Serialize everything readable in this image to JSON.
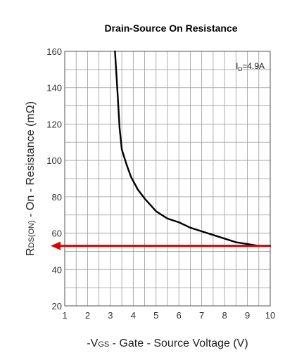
{
  "chart_data": {
    "type": "line",
    "title": "Drain-Source On Resistance",
    "xlabel": "-VGS - Gate - Source Voltage (V)",
    "ylabel": "RDS(ON) - On - Resistance (mΩ)",
    "xlim": [
      1,
      10
    ],
    "ylim": [
      20,
      160
    ],
    "xticks": [
      1,
      2,
      3,
      4,
      5,
      6,
      7,
      8,
      9,
      10
    ],
    "yticks": [
      20,
      40,
      60,
      80,
      100,
      120,
      140,
      160
    ],
    "grid": true,
    "annotation": "ID=4.9A",
    "series": [
      {
        "values": [
          [
            3.2,
            160
          ],
          [
            3.3,
            140
          ],
          [
            3.4,
            118
          ],
          [
            3.5,
            106
          ],
          [
            3.7,
            98
          ],
          [
            3.9,
            91
          ],
          [
            4.2,
            84
          ],
          [
            4.5,
            79
          ],
          [
            5.0,
            72
          ],
          [
            5.5,
            68
          ],
          [
            6.0,
            66
          ],
          [
            6.5,
            63
          ],
          [
            7.0,
            61
          ],
          [
            7.5,
            59
          ],
          [
            8.0,
            57
          ],
          [
            8.5,
            55
          ],
          [
            9.0,
            54
          ],
          [
            9.5,
            53
          ],
          [
            10.0,
            53
          ]
        ],
        "color": "#000000"
      }
    ],
    "reference_line": {
      "y": 53,
      "color": "#e00000"
    }
  }
}
